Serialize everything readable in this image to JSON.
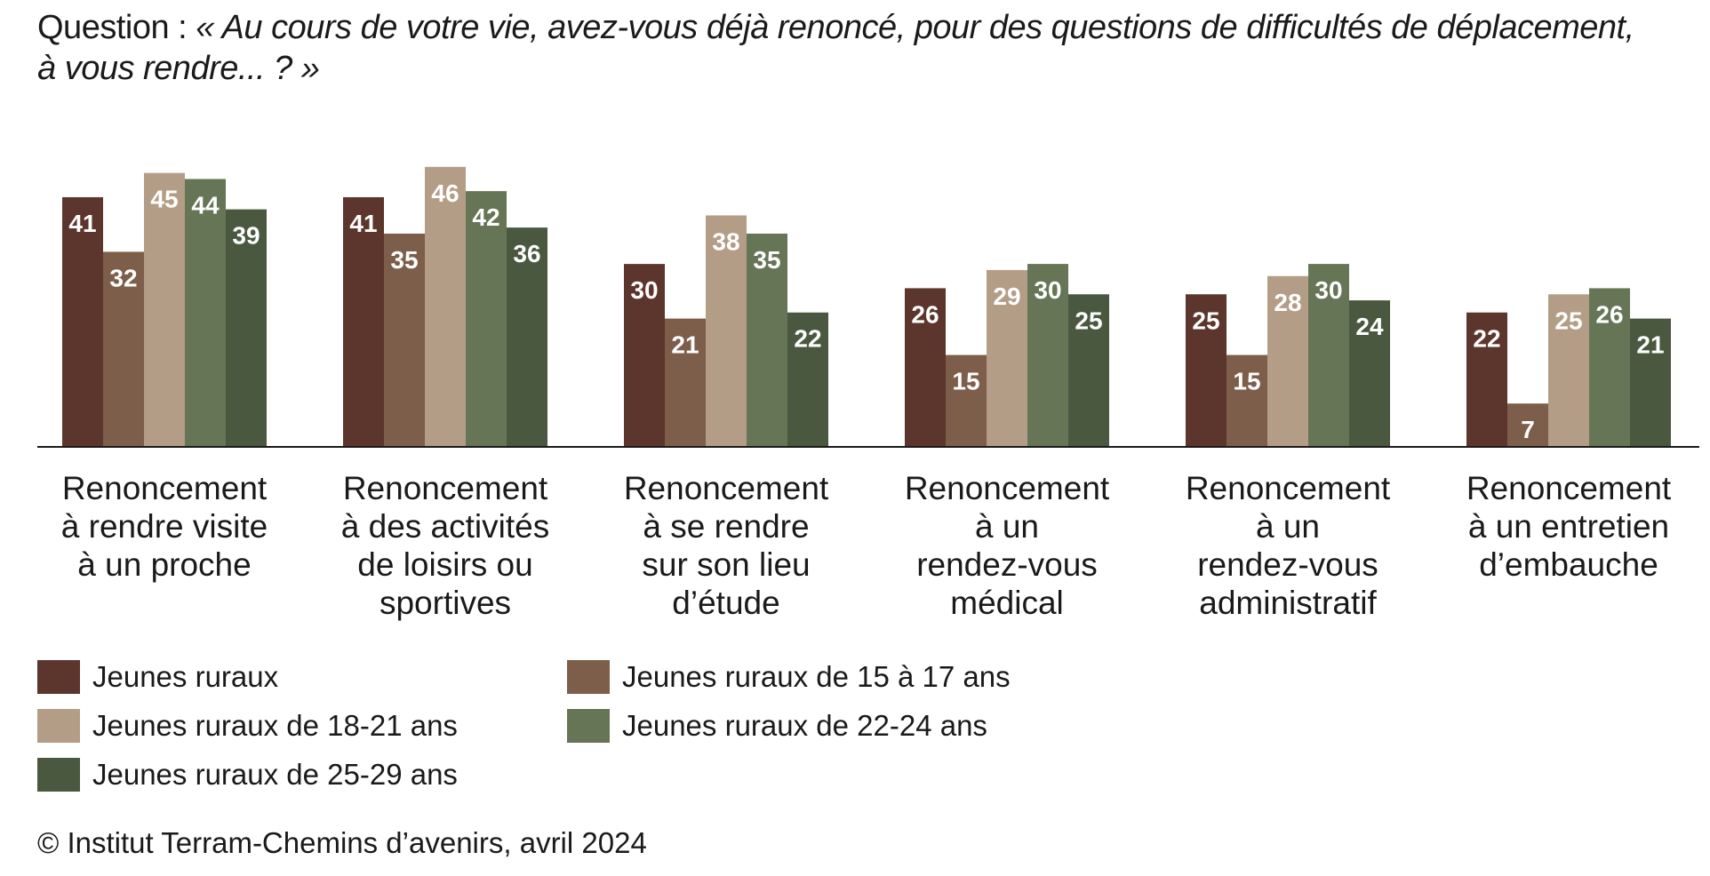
{
  "question": {
    "lead": "Question : ",
    "quote": "« Au cours de votre vie, avez-vous déjà renoncé, pour des questions de difficultés de déplacement, à vous rendre... ? »"
  },
  "credit": "© Institut Terram-Chemins d’avenirs, avril 2024",
  "chart_data": {
    "type": "bar",
    "title": "",
    "xlabel": "",
    "ylabel": "",
    "ylim": [
      0,
      50
    ],
    "grid": false,
    "legend_position": "bottom-left",
    "categories": [
      [
        "Renoncement",
        "à rendre visite",
        "à un proche"
      ],
      [
        "Renoncement",
        "à des activités",
        "de loisirs ou",
        "sportives"
      ],
      [
        "Renoncement",
        "à se rendre",
        "sur son lieu",
        "d’étude"
      ],
      [
        "Renoncement",
        "à un",
        "rendez-vous",
        "médical"
      ],
      [
        "Renoncement",
        "à un",
        "rendez-vous",
        "administratif"
      ],
      [
        "Renoncement",
        "à un entretien",
        "d’embauche"
      ]
    ],
    "series": [
      {
        "name": "Jeunes ruraux",
        "color": "#5c352c",
        "values": [
          41,
          41,
          30,
          26,
          25,
          22
        ]
      },
      {
        "name": "Jeunes ruraux de 15 à 17 ans",
        "color": "#7d5e4a",
        "values": [
          32,
          35,
          21,
          15,
          15,
          7
        ]
      },
      {
        "name": "Jeunes ruraux de 18-21 ans",
        "color": "#b49d86",
        "values": [
          45,
          46,
          38,
          29,
          28,
          25
        ]
      },
      {
        "name": "Jeunes ruraux de 22-24 ans",
        "color": "#667556",
        "values": [
          44,
          42,
          35,
          30,
          30,
          26
        ]
      },
      {
        "name": "Jeunes ruraux de 25-29 ans",
        "color": "#4a5840",
        "values": [
          39,
          36,
          22,
          25,
          24,
          21
        ]
      }
    ]
  }
}
